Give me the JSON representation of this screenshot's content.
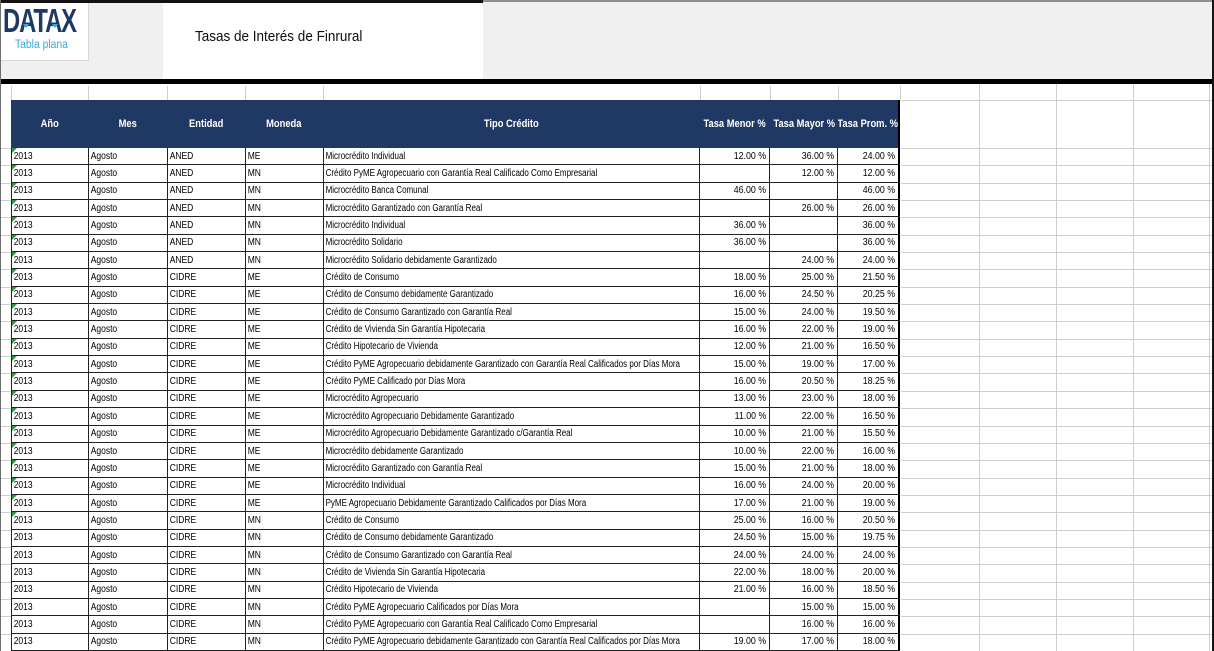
{
  "brand": {
    "logo": "DATAX",
    "tagline": "Tabla plana"
  },
  "header": {
    "title": "Tasas de Interés de Finrural"
  },
  "colors": {
    "table_header_bg": "#1F3864",
    "logo_navy": "#1F3864",
    "accent_blue": "#3FA9DC",
    "flag_green": "#2E9A44",
    "banner_gray": "#F0F0F0"
  },
  "table": {
    "columns": [
      "Año",
      "Mes",
      "Entidad",
      "Moneda",
      "Tipo Crédito",
      "Tasa Menor %",
      "Tasa Mayor %",
      "Tasa Prom. %"
    ],
    "rows": [
      {
        "year": "2013",
        "month": "Agosto",
        "entity": "ANED",
        "currency": "ME",
        "credit_type": "Microcrédito Individual",
        "rate_min": "12.00 %",
        "rate_max": "36.00 %",
        "rate_avg": "24.00 %",
        "flag": true
      },
      {
        "year": "2013",
        "month": "Agosto",
        "entity": "ANED",
        "currency": "MN",
        "credit_type": "Crédito PyME Agropecuario con Garantía Real Calificado Como Empresarial",
        "rate_min": "",
        "rate_max": "12.00 %",
        "rate_avg": "12.00 %",
        "flag": true
      },
      {
        "year": "2013",
        "month": "Agosto",
        "entity": "ANED",
        "currency": "MN",
        "credit_type": "Microcrédito Banca Comunal",
        "rate_min": "46.00 %",
        "rate_max": "",
        "rate_avg": "46.00 %",
        "flag": true
      },
      {
        "year": "2013",
        "month": "Agosto",
        "entity": "ANED",
        "currency": "MN",
        "credit_type": "Microcrédito Garantizado con Garantía Real",
        "rate_min": "",
        "rate_max": "26.00 %",
        "rate_avg": "26.00 %",
        "flag": true
      },
      {
        "year": "2013",
        "month": "Agosto",
        "entity": "ANED",
        "currency": "MN",
        "credit_type": "Microcrédito Individual",
        "rate_min": "36.00 %",
        "rate_max": "",
        "rate_avg": "36.00 %",
        "flag": true
      },
      {
        "year": "2013",
        "month": "Agosto",
        "entity": "ANED",
        "currency": "MN",
        "credit_type": "Microcrédito Solidario",
        "rate_min": "36.00 %",
        "rate_max": "",
        "rate_avg": "36.00 %",
        "flag": true
      },
      {
        "year": "2013",
        "month": "Agosto",
        "entity": "ANED",
        "currency": "MN",
        "credit_type": "Microcrédito Solidario debidamente Garantizado",
        "rate_min": "",
        "rate_max": "24.00 %",
        "rate_avg": "24.00 %",
        "flag": true
      },
      {
        "year": "2013",
        "month": "Agosto",
        "entity": "CIDRE",
        "currency": "ME",
        "credit_type": "Crédito de Consumo",
        "rate_min": "18.00 %",
        "rate_max": "25.00 %",
        "rate_avg": "21.50 %",
        "flag": true
      },
      {
        "year": "2013",
        "month": "Agosto",
        "entity": "CIDRE",
        "currency": "ME",
        "credit_type": "Crédito de Consumo debidamente Garantizado",
        "rate_min": "16.00 %",
        "rate_max": "24.50 %",
        "rate_avg": "20.25 %",
        "flag": true
      },
      {
        "year": "2013",
        "month": "Agosto",
        "entity": "CIDRE",
        "currency": "ME",
        "credit_type": "Crédito de Consumo Garantizado con Garantía Real",
        "rate_min": "15.00 %",
        "rate_max": "24.00 %",
        "rate_avg": "19.50 %",
        "flag": true
      },
      {
        "year": "2013",
        "month": "Agosto",
        "entity": "CIDRE",
        "currency": "ME",
        "credit_type": "Crédito de Vivienda Sin Garantía Hipotecaria",
        "rate_min": "16.00 %",
        "rate_max": "22.00 %",
        "rate_avg": "19.00 %",
        "flag": true
      },
      {
        "year": "2013",
        "month": "Agosto",
        "entity": "CIDRE",
        "currency": "ME",
        "credit_type": "Crédito Hipotecario de Vivienda",
        "rate_min": "12.00 %",
        "rate_max": "21.00 %",
        "rate_avg": "16.50 %",
        "flag": true
      },
      {
        "year": "2013",
        "month": "Agosto",
        "entity": "CIDRE",
        "currency": "ME",
        "credit_type": "Crédito PyME Agropecuario debidamente Garantizado con Garantía Real Calificados por Días Mora",
        "rate_min": "15.00 %",
        "rate_max": "19.00 %",
        "rate_avg": "17.00 %",
        "flag": true
      },
      {
        "year": "2013",
        "month": "Agosto",
        "entity": "CIDRE",
        "currency": "ME",
        "credit_type": "Crédito PyME Calificado por Días Mora",
        "rate_min": "16.00 %",
        "rate_max": "20.50 %",
        "rate_avg": "18.25 %",
        "flag": true
      },
      {
        "year": "2013",
        "month": "Agosto",
        "entity": "CIDRE",
        "currency": "ME",
        "credit_type": "Microcrédito Agropecuario",
        "rate_min": "13.00 %",
        "rate_max": "23.00 %",
        "rate_avg": "18.00 %",
        "flag": true
      },
      {
        "year": "2013",
        "month": "Agosto",
        "entity": "CIDRE",
        "currency": "ME",
        "credit_type": "Microcrédito Agropecuario Debidamente Garantizado",
        "rate_min": "11.00 %",
        "rate_max": "22.00 %",
        "rate_avg": "16.50 %",
        "flag": true
      },
      {
        "year": "2013",
        "month": "Agosto",
        "entity": "CIDRE",
        "currency": "ME",
        "credit_type": "Microcrédito Agropecuario Debidamente Garantizado c/Garantía Real",
        "rate_min": "10.00 %",
        "rate_max": "21.00 %",
        "rate_avg": "15.50 %",
        "flag": true
      },
      {
        "year": "2013",
        "month": "Agosto",
        "entity": "CIDRE",
        "currency": "ME",
        "credit_type": "Microcrédito debidamente Garantizado",
        "rate_min": "10.00 %",
        "rate_max": "22.00 %",
        "rate_avg": "16.00 %",
        "flag": true
      },
      {
        "year": "2013",
        "month": "Agosto",
        "entity": "CIDRE",
        "currency": "ME",
        "credit_type": "Microcrédito Garantizado con Garantía Real",
        "rate_min": "15.00 %",
        "rate_max": "21.00 %",
        "rate_avg": "18.00 %",
        "flag": true
      },
      {
        "year": "2013",
        "month": "Agosto",
        "entity": "CIDRE",
        "currency": "ME",
        "credit_type": "Microcrédito Individual",
        "rate_min": "16.00 %",
        "rate_max": "24.00 %",
        "rate_avg": "20.00 %",
        "flag": true
      },
      {
        "year": "2013",
        "month": "Agosto",
        "entity": "CIDRE",
        "currency": "ME",
        "credit_type": "PyME Agropecuario Debidamente Garantizado Calificados por Días Mora",
        "rate_min": "17.00 %",
        "rate_max": "21.00 %",
        "rate_avg": "19.00 %",
        "flag": true
      },
      {
        "year": "2013",
        "month": "Agosto",
        "entity": "CIDRE",
        "currency": "MN",
        "credit_type": "Crédito de Consumo",
        "rate_min": "25.00 %",
        "rate_max": "16.00 %",
        "rate_avg": "20.50 %",
        "flag": true
      },
      {
        "year": "2013",
        "month": "Agosto",
        "entity": "CIDRE",
        "currency": "MN",
        "credit_type": "Crédito de Consumo debidamente Garantizado",
        "rate_min": "24.50 %",
        "rate_max": "15.00 %",
        "rate_avg": "19.75 %",
        "flag": false
      },
      {
        "year": "2013",
        "month": "Agosto",
        "entity": "CIDRE",
        "currency": "MN",
        "credit_type": "Crédito de Consumo Garantizado con Garantía Real",
        "rate_min": "24.00 %",
        "rate_max": "24.00 %",
        "rate_avg": "24.00 %",
        "flag": false
      },
      {
        "year": "2013",
        "month": "Agosto",
        "entity": "CIDRE",
        "currency": "MN",
        "credit_type": "Crédito de Vivienda Sin Garantía Hipotecaria",
        "rate_min": "22.00 %",
        "rate_max": "18.00 %",
        "rate_avg": "20.00 %",
        "flag": false
      },
      {
        "year": "2013",
        "month": "Agosto",
        "entity": "CIDRE",
        "currency": "MN",
        "credit_type": "Crédito Hipotecario de Vivienda",
        "rate_min": "21.00 %",
        "rate_max": "16.00 %",
        "rate_avg": "18.50 %",
        "flag": false
      },
      {
        "year": "2013",
        "month": "Agosto",
        "entity": "CIDRE",
        "currency": "MN",
        "credit_type": "Crédito PyME Agropecuario Calificados por Días Mora",
        "rate_min": "",
        "rate_max": "15.00 %",
        "rate_avg": "15.00 %",
        "flag": false
      },
      {
        "year": "2013",
        "month": "Agosto",
        "entity": "CIDRE",
        "currency": "MN",
        "credit_type": "Crédito PyME Agropecuario con Garantía Real Calificado Como Empresarial",
        "rate_min": "",
        "rate_max": "16.00 %",
        "rate_avg": "16.00 %",
        "flag": false
      },
      {
        "year": "2013",
        "month": "Agosto",
        "entity": "CIDRE",
        "currency": "MN",
        "credit_type": "Crédito PyME Agropecuario debidamente Garantizado con Garantía Real Calificados por Días Mora",
        "rate_min": "19.00 %",
        "rate_max": "17.00 %",
        "rate_avg": "18.00 %",
        "flag": false
      }
    ]
  }
}
